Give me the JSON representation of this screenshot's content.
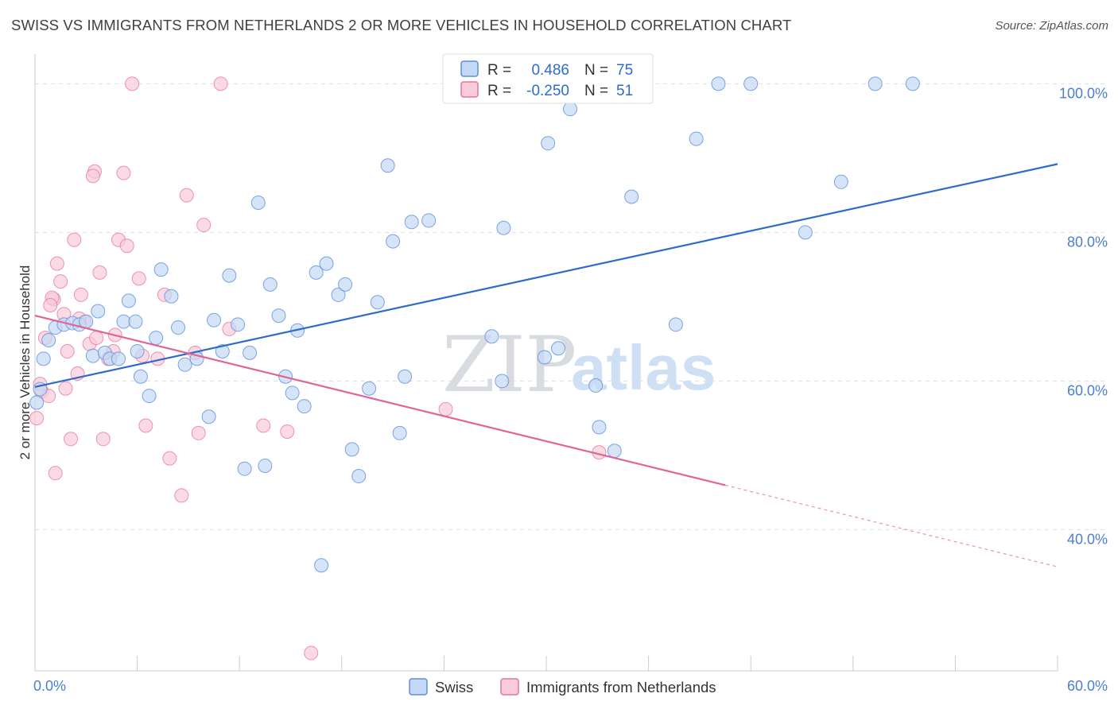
{
  "title": "SWISS VS IMMIGRANTS FROM NETHERLANDS 2 OR MORE VEHICLES IN HOUSEHOLD CORRELATION CHART",
  "source": "Source: ZipAtlas.com",
  "watermark": {
    "zip": "ZIP",
    "atlas": "atlas"
  },
  "colors": {
    "swiss": "#5b8fdd",
    "swiss_fill": "#c5d8f5",
    "neth": "#e8729a",
    "neth_fill": "#f8ccda",
    "axis_text": "#4a7fd0",
    "grid": "#dde0e6"
  },
  "legend": {
    "rows": [
      {
        "r_label": "R =",
        "r_value": "0.486",
        "n_label": "N =",
        "n_value": "75"
      },
      {
        "r_label": "R =",
        "r_value": "-0.250",
        "n_label": "N =",
        "n_value": "51"
      }
    ]
  },
  "chart_data": {
    "type": "scatter",
    "xlabel": "",
    "ylabel": "2 or more Vehicles in Household",
    "x_tick_labels": [
      "0.0%",
      "60.0%"
    ],
    "y_tick_labels": [
      "40.0%",
      "60.0%",
      "80.0%",
      "100.0%"
    ],
    "xlim": [
      0,
      60
    ],
    "ylim": [
      21,
      104
    ],
    "y_ticks": [
      40,
      60,
      80,
      100
    ],
    "grid": true,
    "legend_position": "top-center",
    "series": [
      {
        "name": "Swiss",
        "trend": {
          "x": [
            0,
            60
          ],
          "y": [
            59.2,
            89.2
          ],
          "dashed_from": null
        },
        "points": [
          [
            0.1,
            57.1
          ],
          [
            0.3,
            58.9
          ],
          [
            0.5,
            63.0
          ],
          [
            0.8,
            65.5
          ],
          [
            1.2,
            67.2
          ],
          [
            1.7,
            67.6
          ],
          [
            2.2,
            67.8
          ],
          [
            2.6,
            67.6
          ],
          [
            3.0,
            68.0
          ],
          [
            3.4,
            63.4
          ],
          [
            3.7,
            69.4
          ],
          [
            4.1,
            63.8
          ],
          [
            4.4,
            63.0
          ],
          [
            4.9,
            63.0
          ],
          [
            5.2,
            68.0
          ],
          [
            5.5,
            70.8
          ],
          [
            5.9,
            68.0
          ],
          [
            6.0,
            64.0
          ],
          [
            6.2,
            60.6
          ],
          [
            6.7,
            58.0
          ],
          [
            7.1,
            65.8
          ],
          [
            7.4,
            75.0
          ],
          [
            8.0,
            71.4
          ],
          [
            8.4,
            67.2
          ],
          [
            8.8,
            62.2
          ],
          [
            9.5,
            63.0
          ],
          [
            10.2,
            55.2
          ],
          [
            10.5,
            68.2
          ],
          [
            11.0,
            64.0
          ],
          [
            11.4,
            74.2
          ],
          [
            11.9,
            67.6
          ],
          [
            12.3,
            48.2
          ],
          [
            12.6,
            63.8
          ],
          [
            13.1,
            84.0
          ],
          [
            13.5,
            48.6
          ],
          [
            13.8,
            73.0
          ],
          [
            14.3,
            68.8
          ],
          [
            14.7,
            60.6
          ],
          [
            15.1,
            58.4
          ],
          [
            15.4,
            66.8
          ],
          [
            15.8,
            56.6
          ],
          [
            16.5,
            74.6
          ],
          [
            16.8,
            35.2
          ],
          [
            17.1,
            75.8
          ],
          [
            17.8,
            71.6
          ],
          [
            18.2,
            73.0
          ],
          [
            18.6,
            50.8
          ],
          [
            19.0,
            47.2
          ],
          [
            19.6,
            59.0
          ],
          [
            20.1,
            70.6
          ],
          [
            20.7,
            89.0
          ],
          [
            21.0,
            78.8
          ],
          [
            21.4,
            53.0
          ],
          [
            21.7,
            60.6
          ],
          [
            22.1,
            81.4
          ],
          [
            23.1,
            81.6
          ],
          [
            26.8,
            66.0
          ],
          [
            27.4,
            60.0
          ],
          [
            27.5,
            80.6
          ],
          [
            29.9,
            63.2
          ],
          [
            30.1,
            92.0
          ],
          [
            30.7,
            64.4
          ],
          [
            31.4,
            96.6
          ],
          [
            32.9,
            59.4
          ],
          [
            33.1,
            53.8
          ],
          [
            34.0,
            50.6
          ],
          [
            35.0,
            84.8
          ],
          [
            37.6,
            67.6
          ],
          [
            38.8,
            92.6
          ],
          [
            40.1,
            100.0
          ],
          [
            42.0,
            100.0
          ],
          [
            45.2,
            80.0
          ],
          [
            47.3,
            86.8
          ],
          [
            49.3,
            100.0
          ],
          [
            51.5,
            100.0
          ]
        ]
      },
      {
        "name": "Immigrants from Netherlands",
        "trend": {
          "x": [
            0,
            60
          ],
          "y": [
            68.8,
            35.0
          ],
          "dashed_from": 40.5
        },
        "points": [
          [
            0.1,
            55.0
          ],
          [
            0.3,
            59.6
          ],
          [
            0.4,
            58.6
          ],
          [
            0.6,
            65.8
          ],
          [
            0.8,
            58.0
          ],
          [
            1.1,
            71.0
          ],
          [
            1.2,
            47.6
          ],
          [
            1.3,
            75.8
          ],
          [
            1.5,
            73.4
          ],
          [
            1.7,
            69.0
          ],
          [
            1.8,
            59.0
          ],
          [
            1.9,
            64.0
          ],
          [
            2.1,
            52.2
          ],
          [
            2.3,
            79.0
          ],
          [
            2.5,
            61.0
          ],
          [
            2.7,
            71.6
          ],
          [
            2.9,
            68.0
          ],
          [
            3.2,
            65.0
          ],
          [
            3.5,
            88.2
          ],
          [
            3.6,
            65.8
          ],
          [
            3.8,
            74.6
          ],
          [
            4.0,
            52.2
          ],
          [
            4.3,
            63.0
          ],
          [
            4.6,
            64.0
          ],
          [
            4.9,
            79.0
          ],
          [
            5.2,
            88.0
          ],
          [
            5.4,
            78.2
          ],
          [
            5.7,
            100.0
          ],
          [
            6.1,
            73.8
          ],
          [
            6.5,
            54.0
          ],
          [
            7.2,
            63.0
          ],
          [
            7.6,
            71.6
          ],
          [
            7.9,
            49.6
          ],
          [
            8.6,
            44.6
          ],
          [
            8.9,
            85.0
          ],
          [
            9.4,
            63.8
          ],
          [
            9.6,
            53.0
          ],
          [
            9.9,
            81.0
          ],
          [
            10.9,
            100.0
          ],
          [
            11.4,
            67.0
          ],
          [
            13.4,
            54.0
          ],
          [
            14.8,
            53.2
          ],
          [
            16.2,
            23.4
          ],
          [
            24.1,
            56.2
          ],
          [
            33.1,
            50.4
          ],
          [
            3.4,
            87.6
          ],
          [
            1.0,
            71.2
          ],
          [
            2.6,
            68.4
          ],
          [
            0.9,
            70.2
          ],
          [
            6.3,
            63.4
          ],
          [
            4.7,
            66.2
          ]
        ]
      }
    ]
  },
  "bottom_legend": {
    "swiss": "Swiss",
    "neth": "Immigrants from Netherlands"
  }
}
